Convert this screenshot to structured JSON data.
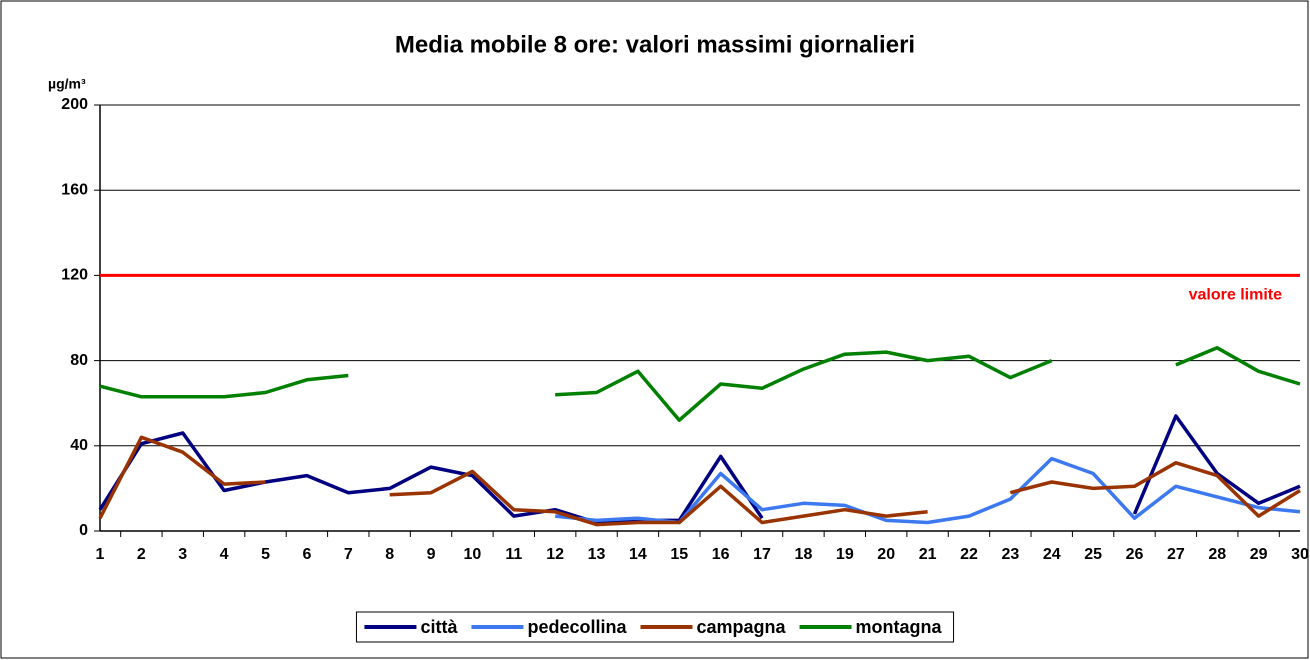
{
  "chart_data": {
    "type": "line",
    "title": "Media mobile 8 ore: valori massimi giornalieri",
    "y_axis_label": "µg/m³",
    "categories": [
      "1",
      "2",
      "3",
      "4",
      "5",
      "6",
      "7",
      "8",
      "9",
      "10",
      "11",
      "12",
      "13",
      "14",
      "15",
      "16",
      "17",
      "18",
      "19",
      "20",
      "21",
      "22",
      "23",
      "24",
      "25",
      "26",
      "27",
      "28",
      "29",
      "30"
    ],
    "series": [
      {
        "name": "città",
        "color": "#000080",
        "values": [
          10,
          41,
          46,
          19,
          23,
          26,
          18,
          20,
          30,
          26,
          7,
          10,
          4,
          5,
          5,
          35,
          6,
          null,
          null,
          null,
          null,
          null,
          null,
          null,
          null,
          8,
          54,
          27,
          13,
          21
        ]
      },
      {
        "name": "pedecollina",
        "color": "#3c78f0",
        "values": [
          null,
          null,
          null,
          null,
          null,
          null,
          null,
          null,
          null,
          null,
          null,
          7,
          5,
          6,
          4,
          27,
          10,
          13,
          12,
          5,
          4,
          7,
          15,
          34,
          27,
          6,
          21,
          16,
          11,
          9
        ]
      },
      {
        "name": "campagna",
        "color": "#993300",
        "values": [
          6,
          44,
          37,
          22,
          23,
          null,
          null,
          17,
          18,
          28,
          10,
          9,
          3,
          4,
          4,
          21,
          4,
          7,
          10,
          7,
          9,
          null,
          18,
          23,
          20,
          21,
          32,
          26,
          7,
          19
        ]
      },
      {
        "name": "montagna",
        "color": "#008000",
        "values": [
          68,
          63,
          63,
          63,
          65,
          71,
          73,
          null,
          null,
          null,
          null,
          64,
          65,
          75,
          52,
          69,
          67,
          76,
          83,
          84,
          80,
          82,
          72,
          80,
          null,
          null,
          78,
          86,
          75,
          69
        ]
      }
    ],
    "reference_line": {
      "value": 120,
      "label": "valore limite",
      "color": "#ff0000"
    },
    "ylim": [
      0,
      200
    ],
    "yticks": [
      0,
      40,
      80,
      120,
      160,
      200
    ],
    "grid": true
  }
}
